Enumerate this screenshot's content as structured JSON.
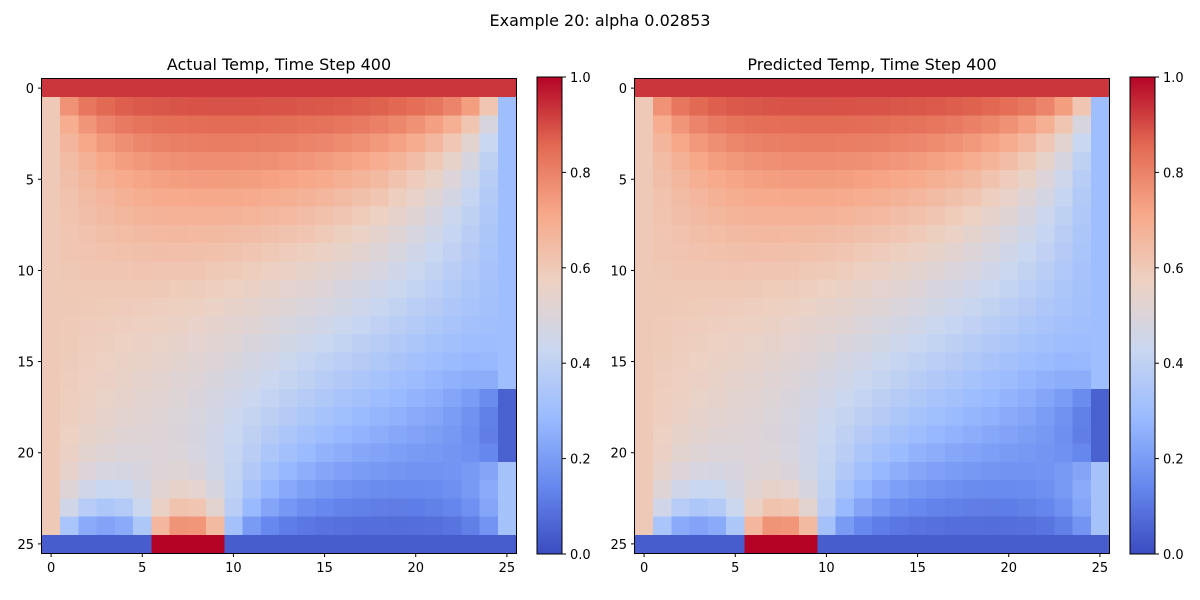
{
  "figure": {
    "suptitle": "Example 20: alpha 0.02853"
  },
  "colormap": {
    "name": "coolwarm",
    "stops": [
      "#3b4cc0",
      "#6788ee",
      "#9abbff",
      "#c9d7f0",
      "#edd1c2",
      "#f7a889",
      "#e26952",
      "#b40426"
    ]
  },
  "chart_data": [
    {
      "type": "heatmap",
      "title": "Actual Temp, Time Step 400",
      "grid_size": 26,
      "xlim": [
        -0.5,
        25.5
      ],
      "ylim": [
        25.5,
        -0.5
      ],
      "xticks": [
        0,
        5,
        10,
        15,
        20,
        25
      ],
      "yticks": [
        0,
        5,
        10,
        15,
        20,
        25
      ],
      "colorbar": {
        "range": [
          0,
          1
        ],
        "ticks": [
          0.0,
          0.2,
          0.4,
          0.6,
          0.8,
          1.0
        ],
        "tick_labels": [
          "0.0",
          "0.2",
          "0.4",
          "0.6",
          "0.8",
          "1.0"
        ]
      },
      "boundary": {
        "top_row_value": 0.93,
        "left_column_value": 0.6,
        "right_column_segments": [
          {
            "rows": [
              1,
              16
            ],
            "value": 0.3
          },
          {
            "rows": [
              17,
              20
            ],
            "value": 0.05
          },
          {
            "rows": [
              21,
              24
            ],
            "value": 0.32
          }
        ],
        "bottom_row_segments": [
          {
            "cols": [
              0,
              5
            ],
            "value": 0.04
          },
          {
            "cols": [
              6,
              9
            ],
            "value": 1.0
          },
          {
            "cols": [
              10,
              25
            ],
            "value": 0.04
          }
        ]
      },
      "interior_description_value": "diffused field between boundaries"
    },
    {
      "type": "heatmap",
      "title": "Predicted Temp, Time Step 400",
      "grid_size": 26,
      "xlim": [
        -0.5,
        25.5
      ],
      "ylim": [
        25.5,
        -0.5
      ],
      "xticks": [
        0,
        5,
        10,
        15,
        20,
        25
      ],
      "yticks": [
        0,
        5,
        10,
        15,
        20,
        25
      ],
      "colorbar": {
        "range": [
          0,
          1
        ],
        "ticks": [
          0.0,
          0.2,
          0.4,
          0.6,
          0.8,
          1.0
        ],
        "tick_labels": [
          "0.0",
          "0.2",
          "0.4",
          "0.6",
          "0.8",
          "1.0"
        ]
      },
      "boundary": {
        "top_row_value": 0.93,
        "left_column_value": 0.6,
        "right_column_segments": [
          {
            "rows": [
              1,
              16
            ],
            "value": 0.3
          },
          {
            "rows": [
              17,
              20
            ],
            "value": 0.05
          },
          {
            "rows": [
              21,
              24
            ],
            "value": 0.32
          }
        ],
        "bottom_row_segments": [
          {
            "cols": [
              0,
              5
            ],
            "value": 0.04
          },
          {
            "cols": [
              6,
              9
            ],
            "value": 1.0
          },
          {
            "cols": [
              10,
              25
            ],
            "value": 0.04
          }
        ]
      },
      "interior_description_value": "diffused field between boundaries"
    }
  ]
}
